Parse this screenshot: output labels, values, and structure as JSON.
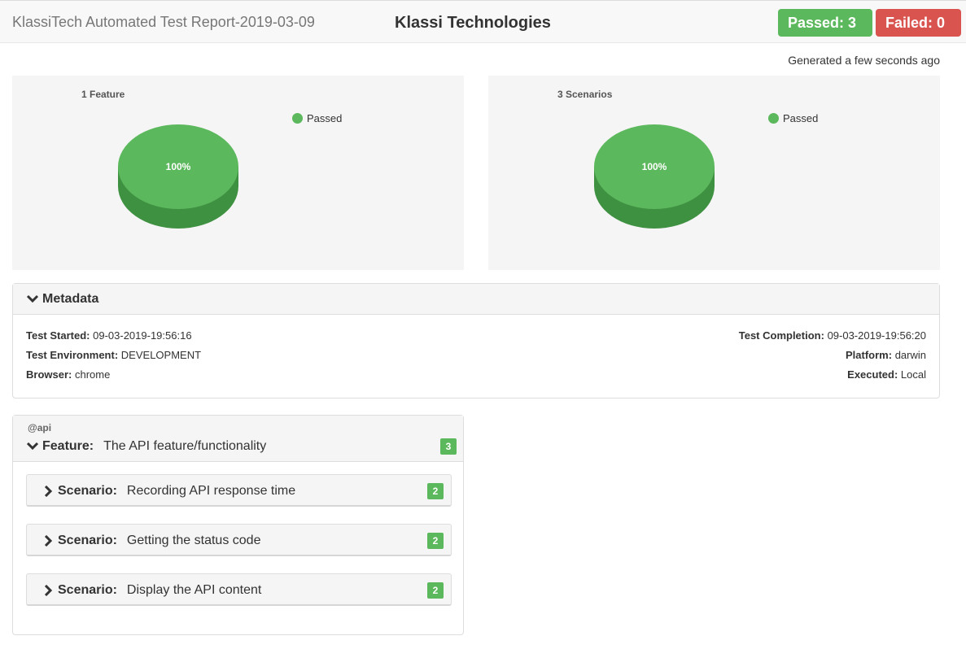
{
  "header": {
    "report_title": "KlassiTech Automated Test Report-2019-03-09",
    "company": "Klassi Technologies",
    "passed_label": "Passed: 3",
    "failed_label": "Failed: 0"
  },
  "generated": "Generated a few seconds ago",
  "charts": [
    {
      "title": "1 Feature",
      "legend": "Passed",
      "pct_label": "100%",
      "color": "#5cb85c"
    },
    {
      "title": "3 Scenarios",
      "legend": "Passed",
      "pct_label": "100%",
      "color": "#5cb85c"
    }
  ],
  "metadata": {
    "heading": "Metadata",
    "left": [
      {
        "key": "Test Started:",
        "value": "09-03-2019-19:56:16"
      },
      {
        "key": "Test Environment:",
        "value": "DEVELOPMENT"
      },
      {
        "key": "Browser:",
        "value": "chrome"
      }
    ],
    "right": [
      {
        "key": "Test Completion:",
        "value": "09-03-2019-19:56:20"
      },
      {
        "key": "Platform:",
        "value": "darwin"
      },
      {
        "key": "Executed:",
        "value": "Local"
      }
    ]
  },
  "feature": {
    "tag": "@api",
    "keyword": "Feature:",
    "name": "The API feature/functionality",
    "count": "3",
    "scenarios": [
      {
        "keyword": "Scenario:",
        "name": "Recording API response time",
        "count": "2"
      },
      {
        "keyword": "Scenario:",
        "name": "Getting the status code",
        "count": "2"
      },
      {
        "keyword": "Scenario:",
        "name": "Display the API content",
        "count": "2"
      }
    ]
  },
  "colors": {
    "passed": "#5cb85c",
    "failed": "#d9534f"
  }
}
